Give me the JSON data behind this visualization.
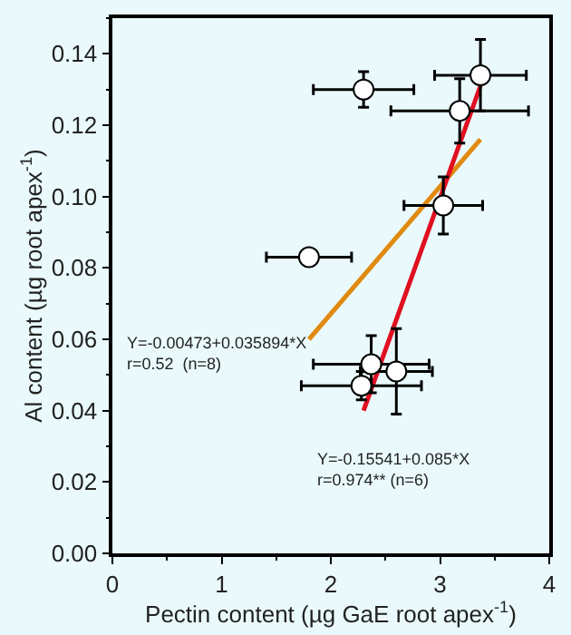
{
  "chart_data": {
    "type": "scatter",
    "xlabel": "Pectin content (µg GaE root apex$^{-1}$)",
    "ylabel": "Al content (µg root apex$^{-1}$)",
    "series": [
      {
        "color": "#000000",
        "marker": "circle",
        "x": [
          2.3,
          3.37,
          3.18,
          3.03,
          1.8,
          2.37,
          2.6,
          2.28
        ],
        "values": [
          0.13,
          0.134,
          0.124,
          0.0975,
          0.083,
          0.053,
          0.051,
          0.047
        ],
        "xerrors": [
          0.46,
          0.42,
          0.63,
          0.36,
          0.39,
          0.53,
          0.33,
          0.55
        ],
        "errors": [
          0.005,
          0.01,
          0.009,
          0.008,
          null,
          0.008,
          0.012,
          0.004
        ]
      },
      {
        "type": "line",
        "color": "#e08a10",
        "x": [
          1.8,
          3.37
        ],
        "values": [
          0.06,
          0.116
        ]
      },
      {
        "type": "line",
        "color": "#e01020",
        "x": [
          2.3,
          3.37
        ],
        "values": [
          0.04,
          0.131
        ]
      }
    ],
    "annotations": [
      "Y=-0.00473+0.035894*X\nr=0.52  (n=8)",
      "Y=-0.15541+0.085*X\nr=0.974** (n=6)"
    ],
    "xlim": [
      0,
      4
    ],
    "xticks": [
      0,
      1,
      2,
      3,
      4
    ],
    "ylim": [
      0,
      0.15
    ],
    "yticks": [
      {
        "value": 0,
        "label": "0.00"
      },
      {
        "value": 0.02,
        "label": "0.02"
      },
      {
        "value": 0.04,
        "label": "0.04"
      },
      {
        "value": 0.06,
        "label": "0.06"
      },
      {
        "value": 0.08,
        "label": "0.08"
      },
      {
        "value": 0.1,
        "label": "0.10"
      },
      {
        "value": 0.12,
        "label": "0.12"
      },
      {
        "value": 0.14,
        "label": "0.14"
      }
    ],
    "grid": false,
    "legend": false
  }
}
